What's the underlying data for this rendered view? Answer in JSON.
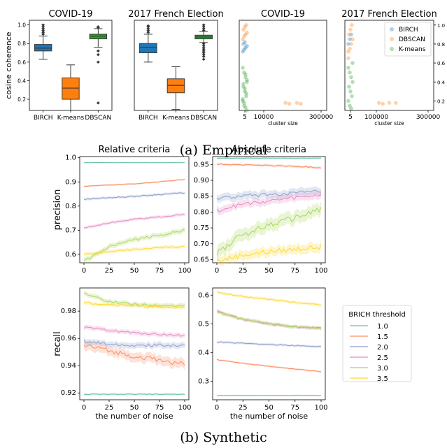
{
  "captions": {
    "empirical": "(a) Empirical",
    "synthetic": "(b) Synthetic"
  },
  "legend_birch_threshold": {
    "title": "BRICH threshold",
    "entries": [
      {
        "label": "1.0",
        "color": "#66c2a5"
      },
      {
        "label": "1.5",
        "color": "#fc8d62"
      },
      {
        "label": "2.0",
        "color": "#8da0cb"
      },
      {
        "label": "2.5",
        "color": "#e78ac3"
      },
      {
        "label": "3.0",
        "color": "#a6d854"
      },
      {
        "label": "3.5",
        "color": "#ffd92f"
      }
    ]
  },
  "chart_data": [
    {
      "type": "box",
      "title": "COVID-19",
      "ylabel": "cosine coherence",
      "ylim": [
        0.08,
        1.05
      ],
      "yticks": [
        "0.2",
        "0.4",
        "0.6",
        "0.8",
        "1.0"
      ],
      "categories": [
        "BIRCH",
        "K-means",
        "DBSCAN"
      ],
      "colors": [
        "#1f77b4",
        "#ff7f0e",
        "#2ca02c"
      ],
      "boxes": [
        {
          "whisker_low": 0.63,
          "q1": 0.72,
          "median": 0.75,
          "q3": 0.79,
          "whisker_high": 0.88,
          "outliers_high": [
            0.9,
            0.92,
            0.94,
            0.96,
            0.98,
            1.0
          ]
        },
        {
          "whisker_low": 0.08,
          "q1": 0.2,
          "median": 0.32,
          "q3": 0.43,
          "whisker_high": 0.57,
          "outliers_high": []
        },
        {
          "whisker_low": 0.76,
          "q1": 0.85,
          "median": 0.88,
          "q3": 0.9,
          "whisker_high": 0.96,
          "outliers_high": [
            0.97,
            0.98
          ],
          "outliers_low": [
            0.6,
            0.68,
            0.72,
            0.16
          ]
        }
      ]
    },
    {
      "type": "box",
      "title": "2017 French Election",
      "ylim": [
        0.08,
        1.05
      ],
      "categories": [
        "BIRCH",
        "K-means",
        "DBSCAN"
      ],
      "colors": [
        "#1f77b4",
        "#ff7f0e",
        "#2ca02c"
      ],
      "boxes": [
        {
          "whisker_low": 0.6,
          "q1": 0.7,
          "median": 0.76,
          "q3": 0.8,
          "whisker_high": 0.9,
          "outliers_high": [
            0.92,
            0.94,
            0.96,
            0.98,
            0.99
          ]
        },
        {
          "whisker_low": 0.09,
          "q1": 0.27,
          "median": 0.35,
          "q3": 0.42,
          "whisker_high": 0.55,
          "outliers_high": []
        },
        {
          "whisker_low": 0.81,
          "q1": 0.85,
          "median": 0.87,
          "q3": 0.89,
          "whisker_high": 0.93,
          "outliers_high": [
            0.94,
            0.96,
            0.98,
            1.0
          ],
          "outliers_low": [
            0.8,
            0.78,
            0.76,
            0.74,
            0.72,
            0.7,
            0.68,
            0.66,
            0.63
          ]
        }
      ]
    },
    {
      "type": "scatter",
      "title": "COVID-19",
      "xlabel": "cluster size",
      "xticks": [
        "5",
        "10000",
        "300000"
      ],
      "ylim": [
        0.1,
        1.05
      ],
      "series": [
        {
          "name": "BIRCH",
          "color": "#1f77b4",
          "points": [
            [
              5,
              0.72
            ],
            [
              5,
              0.74
            ],
            [
              5,
              0.76
            ],
            [
              5,
              0.78
            ],
            [
              5,
              0.8
            ],
            [
              5,
              0.82
            ]
          ]
        },
        {
          "name": "DBSCAN",
          "color": "#ff7f0e",
          "points": [
            [
              5,
              0.85
            ],
            [
              5,
              0.88
            ],
            [
              5,
              0.9
            ],
            [
              5,
              0.92
            ],
            [
              5,
              0.95
            ],
            [
              5,
              0.98
            ],
            [
              5,
              1.0
            ],
            [
              160000,
              0.18
            ],
            [
              175000,
              0.17
            ],
            [
              205000,
              0.18
            ],
            [
              220000,
              0.17
            ]
          ]
        },
        {
          "name": "K-means",
          "color": "#2ca02c",
          "points": [
            [
              5,
              0.55
            ],
            [
              5,
              0.5
            ],
            [
              5,
              0.45
            ],
            [
              5,
              0.4
            ],
            [
              5,
              0.35
            ],
            [
              5,
              0.3
            ],
            [
              5,
              0.25
            ],
            [
              5,
              0.2
            ],
            [
              5,
              0.15
            ],
            [
              5,
              0.48
            ],
            [
              5,
              0.42
            ],
            [
              5,
              0.38
            ],
            [
              5,
              0.33
            ],
            [
              5,
              0.28
            ],
            [
              5,
              0.22
            ],
            [
              5,
              0.18
            ],
            [
              5,
              0.13
            ],
            [
              5,
              0.1
            ]
          ]
        }
      ]
    },
    {
      "type": "scatter",
      "title": "2017 French Election",
      "xlabel": "cluster size",
      "xticks": [
        "5",
        "100000",
        "300000"
      ],
      "yticks_right": [
        "0.2",
        "0.4",
        "0.6",
        "0.8",
        "1.0"
      ],
      "ylim": [
        0.1,
        1.05
      ],
      "legend": {
        "position": "top-right",
        "entries": [
          "BIRCH",
          "DBSCAN",
          "K-means"
        ]
      },
      "series": [
        {
          "name": "BIRCH",
          "color": "#1f77b4",
          "points": [
            [
              5,
              0.8
            ],
            [
              5,
              0.85
            ],
            [
              5,
              0.9
            ]
          ]
        },
        {
          "name": "DBSCAN",
          "color": "#ff7f0e",
          "points": [
            [
              5,
              0.72
            ],
            [
              5,
              0.75
            ],
            [
              5,
              0.8
            ],
            [
              5,
              0.85
            ],
            [
              5,
              0.9
            ],
            [
              5,
              0.95
            ],
            [
              5,
              1.0
            ],
            [
              5,
              0.65
            ],
            [
              110000,
              0.18
            ],
            [
              125000,
              0.17
            ],
            [
              150000,
              0.18
            ],
            [
              175000,
              0.18
            ]
          ]
        },
        {
          "name": "K-means",
          "color": "#2ca02c",
          "points": [
            [
              5,
              0.55
            ],
            [
              5,
              0.5
            ],
            [
              5,
              0.45
            ],
            [
              5,
              0.4
            ],
            [
              5,
              0.35
            ],
            [
              5,
              0.3
            ],
            [
              5,
              0.25
            ],
            [
              5,
              0.2
            ],
            [
              5,
              0.15
            ],
            [
              5,
              0.12
            ],
            [
              5,
              0.6
            ]
          ]
        }
      ]
    },
    {
      "type": "line",
      "title": "Relative criteria",
      "ylabel": "precision",
      "x": [
        0,
        25,
        50,
        75,
        100
      ],
      "xticks": [
        "0",
        "25",
        "50",
        "75",
        "100"
      ],
      "ylim": [
        0.565,
        1.005
      ],
      "yticks": [
        "0.6",
        "0.7",
        "0.8",
        "0.9",
        "1.0"
      ],
      "series": [
        {
          "name": "1.0",
          "values": [
            0.98,
            0.98,
            0.98,
            0.98,
            0.98
          ]
        },
        {
          "name": "1.5",
          "values": [
            0.882,
            0.887,
            0.892,
            0.9,
            0.91
          ]
        },
        {
          "name": "2.0",
          "values": [
            0.828,
            0.835,
            0.84,
            0.848,
            0.855
          ]
        },
        {
          "name": "2.5",
          "values": [
            0.71,
            0.73,
            0.745,
            0.755,
            0.765
          ]
        },
        {
          "name": "3.0",
          "values": [
            0.57,
            0.63,
            0.66,
            0.68,
            0.7
          ]
        },
        {
          "name": "3.5",
          "values": [
            0.6,
            0.61,
            0.62,
            0.628,
            0.632
          ]
        }
      ]
    },
    {
      "type": "line",
      "title": "Absolute criteria",
      "x": [
        0,
        25,
        50,
        75,
        100
      ],
      "xticks": [
        "0",
        "25",
        "50",
        "75",
        "100"
      ],
      "ylim": [
        0.64,
        0.975
      ],
      "yticks": [
        "0.65",
        "0.70",
        "0.75",
        "0.80",
        "0.85",
        "0.90",
        "0.95"
      ],
      "series": [
        {
          "name": "1.0",
          "values": [
            0.97,
            0.97,
            0.97,
            0.97,
            0.97
          ]
        },
        {
          "name": "1.5",
          "values": [
            0.951,
            0.949,
            0.947,
            0.944,
            0.94
          ]
        },
        {
          "name": "2.0",
          "values": [
            0.843,
            0.85,
            0.855,
            0.86,
            0.865
          ]
        },
        {
          "name": "2.5",
          "values": [
            0.805,
            0.825,
            0.835,
            0.845,
            0.855
          ]
        },
        {
          "name": "3.0",
          "values": [
            0.67,
            0.73,
            0.76,
            0.78,
            0.81
          ]
        },
        {
          "name": "3.5",
          "values": [
            0.645,
            0.665,
            0.675,
            0.683,
            0.69
          ]
        }
      ]
    },
    {
      "type": "line",
      "ylabel": "recall",
      "xlabel": "the number of noise",
      "x": [
        0,
        25,
        50,
        75,
        100
      ],
      "xticks": [
        "0",
        "25",
        "50",
        "75",
        "100"
      ],
      "ylim": [
        0.915,
        0.997
      ],
      "yticks": [
        "0.92",
        "0.94",
        "0.96",
        "0.98"
      ],
      "series": [
        {
          "name": "1.0",
          "values": [
            0.919,
            0.919,
            0.919,
            0.919,
            0.919
          ]
        },
        {
          "name": "1.5",
          "values": [
            0.955,
            0.951,
            0.947,
            0.944,
            0.941
          ]
        },
        {
          "name": "2.0",
          "values": [
            0.958,
            0.956,
            0.955,
            0.955,
            0.955
          ]
        },
        {
          "name": "2.5",
          "values": [
            0.968,
            0.966,
            0.964,
            0.963,
            0.962
          ]
        },
        {
          "name": "3.0",
          "values": [
            0.993,
            0.987,
            0.985,
            0.984,
            0.984
          ]
        },
        {
          "name": "3.5",
          "values": [
            0.986,
            0.985,
            0.984,
            0.983,
            0.983
          ]
        }
      ]
    },
    {
      "type": "line",
      "xlabel": "the number of noise",
      "x": [
        0,
        25,
        50,
        75,
        100
      ],
      "xticks": [
        "0",
        "25",
        "50",
        "75",
        "100"
      ],
      "ylim": [
        0.235,
        0.625
      ],
      "yticks": [
        "0.3",
        "0.4",
        "0.5",
        "0.6"
      ],
      "series": [
        {
          "name": "1.0",
          "values": [
            0.25,
            0.25,
            0.25,
            0.25,
            0.25
          ]
        },
        {
          "name": "1.5",
          "values": [
            0.375,
            0.362,
            0.352,
            0.342,
            0.333
          ]
        },
        {
          "name": "2.0",
          "values": [
            0.437,
            0.432,
            0.428,
            0.424,
            0.42
          ]
        },
        {
          "name": "2.5",
          "values": [
            0.545,
            0.515,
            0.5,
            0.49,
            0.485
          ]
        },
        {
          "name": "3.0",
          "values": [
            0.54,
            0.515,
            0.5,
            0.49,
            0.483
          ]
        },
        {
          "name": "3.5",
          "values": [
            0.61,
            0.595,
            0.585,
            0.575,
            0.565
          ]
        }
      ]
    }
  ]
}
